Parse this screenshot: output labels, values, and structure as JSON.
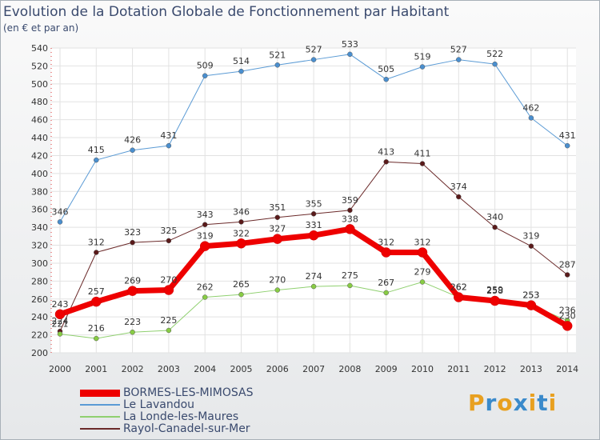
{
  "title": "Evolution de la Dotation Globale de Fonctionnement par Habitant",
  "subtitle": "(en € et par an)",
  "logo": {
    "text": "Proxiti",
    "colors": [
      "#e8a020",
      "#3a8acb",
      "#e8a020",
      "#3a8acb",
      "#e8a020",
      "#3a8acb",
      "#e8a020"
    ]
  },
  "chart_data": {
    "type": "line",
    "title": "Evolution de la Dotation Globale de Fonctionnement par Habitant",
    "subtitle": "(en € et par an)",
    "categories": [
      "2000",
      "2001",
      "2002",
      "2003",
      "2004",
      "2005",
      "2006",
      "2007",
      "2008",
      "2009",
      "2010",
      "2011",
      "2012",
      "2013",
      "2014"
    ],
    "ylim": [
      200,
      540
    ],
    "yticks": [
      200,
      220,
      240,
      260,
      280,
      300,
      320,
      340,
      360,
      380,
      400,
      420,
      440,
      460,
      480,
      500,
      520,
      540
    ],
    "grid": true,
    "legend_position": "bottom-left",
    "series": [
      {
        "name": "Le Lavandou",
        "color": "#5b9bd5",
        "values": [
          346,
          415,
          426,
          431,
          509,
          514,
          521,
          527,
          533,
          505,
          519,
          527,
          522,
          462,
          431
        ]
      },
      {
        "name": "Rayol-Canadel-sur-Mer",
        "color": "#6b2a2a",
        "values": [
          224,
          312,
          323,
          325,
          343,
          346,
          351,
          355,
          359,
          413,
          411,
          374,
          340,
          319,
          287
        ]
      },
      {
        "name": "La Londe-les-Maures",
        "color": "#90d070",
        "values": [
          221,
          216,
          223,
          225,
          262,
          265,
          270,
          274,
          275,
          267,
          279,
          262,
          259,
          253,
          236
        ]
      },
      {
        "name": "BORMES-LES-MIMOSAS",
        "color": "#ee0000",
        "values": [
          243,
          257,
          269,
          270,
          319,
          322,
          327,
          331,
          338,
          312,
          312,
          262,
          258,
          253,
          230
        ]
      }
    ],
    "legend_order": [
      "BORMES-LES-MIMOSAS",
      "Le Lavandou",
      "La Londe-les-Maures",
      "Rayol-Canadel-sur-Mer"
    ]
  }
}
